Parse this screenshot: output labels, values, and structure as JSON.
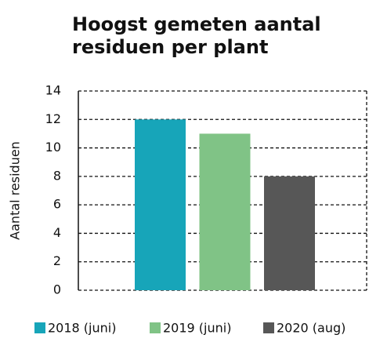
{
  "chart_data": {
    "type": "bar",
    "title": [
      "Hoogst gemeten aantal",
      "residuen per plant"
    ],
    "ylabel": "Aantal residuen",
    "categories": [
      "2018 (juni)",
      "2019 (juni)",
      "2020 (aug)"
    ],
    "values": [
      12,
      11,
      8
    ],
    "colors": [
      "#17a5b9",
      "#80c386",
      "#575757"
    ],
    "ylim": [
      0,
      14
    ],
    "yticks": [
      0,
      2,
      4,
      6,
      8,
      10,
      12,
      14
    ],
    "grid": true,
    "legend": "bottom"
  }
}
